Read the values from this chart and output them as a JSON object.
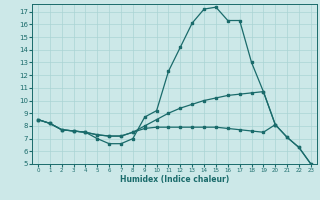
{
  "xlabel": "Humidex (Indice chaleur)",
  "xlim": [
    -0.5,
    23.5
  ],
  "ylim": [
    5,
    17.6
  ],
  "yticks": [
    5,
    6,
    7,
    8,
    9,
    10,
    11,
    12,
    13,
    14,
    15,
    16,
    17
  ],
  "xticks": [
    0,
    1,
    2,
    3,
    4,
    5,
    6,
    7,
    8,
    9,
    10,
    11,
    12,
    13,
    14,
    15,
    16,
    17,
    18,
    19,
    20,
    21,
    22,
    23
  ],
  "bg_color": "#cce8e8",
  "grid_color": "#aad4d4",
  "line_color": "#1a6b6b",
  "line1_x": [
    0,
    1,
    2,
    3,
    4,
    5,
    6,
    7,
    8,
    9,
    10,
    11,
    12,
    13,
    14,
    15,
    16,
    17,
    18,
    19,
    20,
    21,
    22,
    23
  ],
  "line1_y": [
    8.5,
    8.2,
    7.7,
    7.6,
    7.5,
    7.0,
    6.6,
    6.6,
    7.0,
    8.7,
    9.2,
    12.3,
    14.2,
    16.1,
    17.2,
    17.35,
    16.3,
    16.3,
    13.0,
    10.7,
    8.1,
    7.1,
    6.3,
    5.0
  ],
  "line2_x": [
    0,
    1,
    2,
    3,
    4,
    5,
    6,
    7,
    8,
    9,
    10,
    11,
    12,
    13,
    14,
    15,
    16,
    17,
    18,
    19,
    20
  ],
  "line2_y": [
    8.5,
    8.2,
    7.7,
    7.6,
    7.5,
    7.3,
    7.2,
    7.2,
    7.5,
    8.0,
    8.5,
    9.0,
    9.4,
    9.7,
    10.0,
    10.2,
    10.4,
    10.5,
    10.6,
    10.7,
    8.1
  ],
  "line3_x": [
    0,
    1,
    2,
    3,
    4,
    5,
    6,
    7,
    8,
    9,
    10,
    11,
    12,
    13,
    14,
    15,
    16,
    17,
    18,
    19,
    20,
    21,
    22,
    23
  ],
  "line3_y": [
    8.5,
    8.2,
    7.7,
    7.6,
    7.5,
    7.3,
    7.2,
    7.2,
    7.5,
    7.8,
    7.9,
    7.9,
    7.9,
    7.9,
    7.9,
    7.9,
    7.8,
    7.7,
    7.6,
    7.5,
    8.1,
    7.1,
    6.3,
    5.0
  ]
}
